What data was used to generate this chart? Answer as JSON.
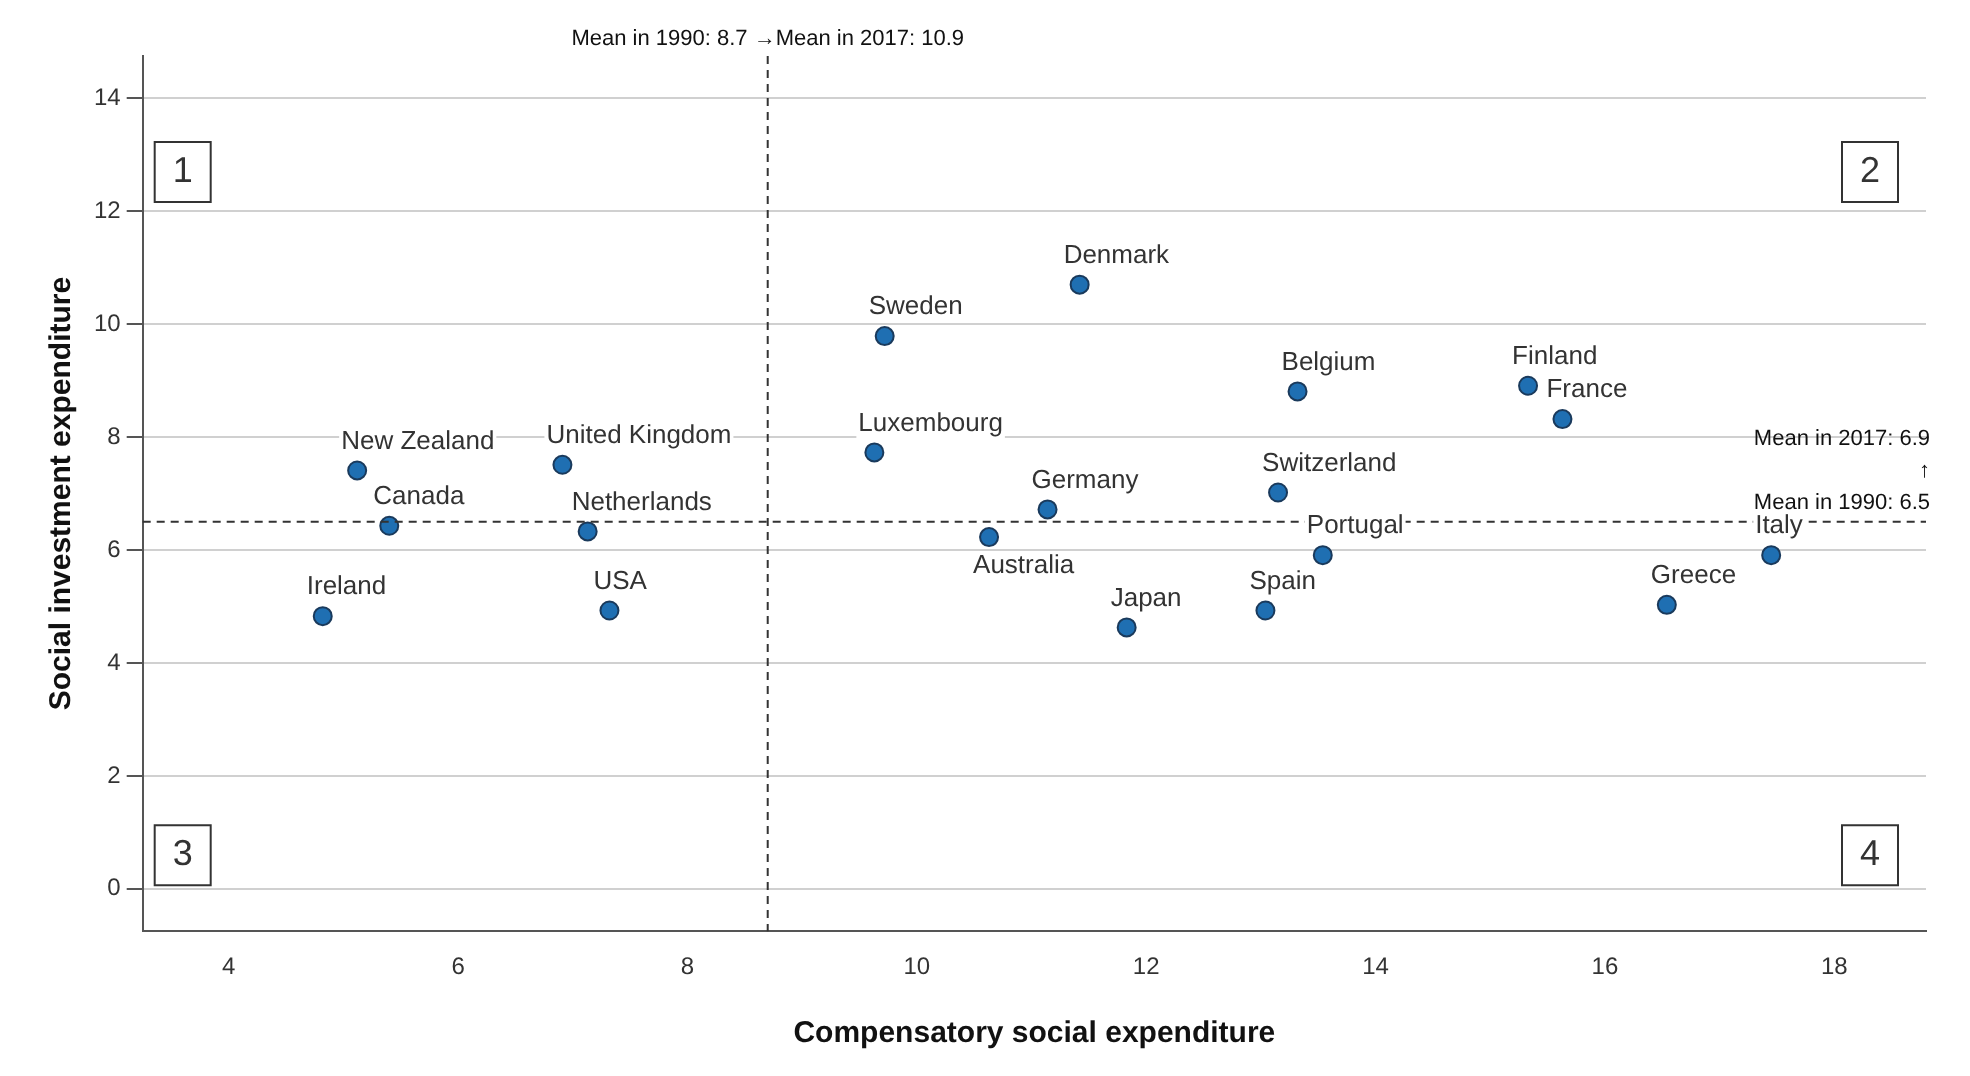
{
  "chart_data": {
    "type": "scatter",
    "xlabel": "Compensatory social expenditure",
    "ylabel": "Social investment expenditure",
    "x": [
      5.12,
      5.4,
      4.82,
      6.91,
      7.13,
      7.32,
      9.72,
      9.63,
      11.42,
      11.14,
      10.63,
      11.83,
      13.04,
      13.54,
      13.15,
      13.32,
      15.33,
      15.63,
      16.54,
      17.45
    ],
    "series": [
      {
        "color": "#1f6fb2",
        "values": [
          7.41,
          6.43,
          4.83,
          7.51,
          6.33,
          4.93,
          9.79,
          7.73,
          10.7,
          6.72,
          6.23,
          4.63,
          4.93,
          5.91,
          7.02,
          8.81,
          8.91,
          8.32,
          5.03,
          5.91
        ]
      }
    ],
    "xlim": [
      3.25,
      18.8
    ],
    "ylim": [
      -0.75,
      14.75
    ],
    "xticks": [
      4,
      6,
      8,
      10,
      12,
      14,
      16,
      18
    ],
    "yticks": [
      0,
      2,
      4,
      6,
      8,
      10,
      12,
      14
    ],
    "grid": "y",
    "legend": false,
    "marker": "circle",
    "ref_lines": [
      {
        "axis": "x",
        "value": 8.7,
        "label": "Mean in 1990: 8.7 →Mean in 2017: 10.9",
        "line_style": "dashed"
      },
      {
        "axis": "y",
        "value": 6.5,
        "label": "Mean in 2017: 6.9\n↑\nMean in 1990: 6.5",
        "line_style": "dashed"
      }
    ],
    "annotations": [
      {
        "text": "New Zealand",
        "x": 5.12,
        "y": 7.41
      },
      {
        "text": "Canada",
        "x": 5.4,
        "y": 6.43
      },
      {
        "text": "Ireland",
        "x": 4.82,
        "y": 4.83
      },
      {
        "text": "United Kingdom",
        "x": 6.91,
        "y": 7.51
      },
      {
        "text": "Netherlands",
        "x": 7.13,
        "y": 6.33
      },
      {
        "text": "USA",
        "x": 7.32,
        "y": 4.93
      },
      {
        "text": "Sweden",
        "x": 9.72,
        "y": 9.79
      },
      {
        "text": "Luxembourg",
        "x": 9.63,
        "y": 7.73
      },
      {
        "text": "Denmark",
        "x": 11.42,
        "y": 10.7
      },
      {
        "text": "Germany",
        "x": 11.14,
        "y": 6.72
      },
      {
        "text": "Australia",
        "x": 10.63,
        "y": 6.23
      },
      {
        "text": "Japan",
        "x": 11.83,
        "y": 4.63
      },
      {
        "text": "Spain",
        "x": 13.04,
        "y": 4.93
      },
      {
        "text": "Portugal",
        "x": 13.54,
        "y": 5.91
      },
      {
        "text": "Switzerland",
        "x": 13.15,
        "y": 7.02
      },
      {
        "text": "Belgium",
        "x": 13.32,
        "y": 8.81
      },
      {
        "text": "Finland",
        "x": 15.33,
        "y": 8.91
      },
      {
        "text": "France",
        "x": 15.63,
        "y": 8.32
      },
      {
        "text": "Greece",
        "x": 16.54,
        "y": 5.03
      },
      {
        "text": "Italy",
        "x": 17.45,
        "y": 5.91
      },
      "1",
      "2",
      "3",
      "4"
    ]
  }
}
